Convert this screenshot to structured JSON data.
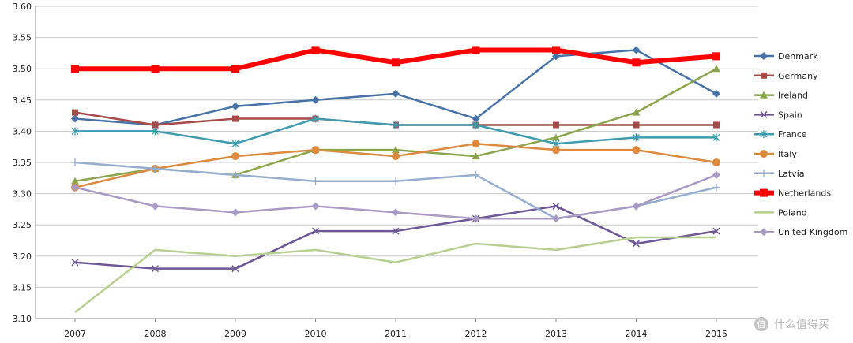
{
  "chart_data": {
    "type": "line",
    "categories": [
      "2007",
      "2008",
      "2009",
      "2010",
      "2011",
      "2012",
      "2013",
      "2014",
      "2015"
    ],
    "ylim": [
      3.1,
      3.6
    ],
    "yticks": [
      "3.10",
      "3.15",
      "3.20",
      "3.25",
      "3.30",
      "3.35",
      "3.40",
      "3.45",
      "3.50",
      "3.55",
      "3.60"
    ],
    "grid": "horizontal",
    "legend_position": "right",
    "series": [
      {
        "name": "Denmark",
        "color": "#4672a8",
        "marker": "diamond",
        "values": [
          3.42,
          3.41,
          3.44,
          3.45,
          3.46,
          3.42,
          3.52,
          3.53,
          3.46
        ]
      },
      {
        "name": "Germany",
        "color": "#a84a47",
        "marker": "square",
        "values": [
          3.43,
          3.41,
          3.42,
          3.42,
          3.41,
          3.41,
          3.41,
          3.41,
          3.41
        ]
      },
      {
        "name": "Ireland",
        "color": "#8aa54b",
        "marker": "triangle",
        "values": [
          3.32,
          3.34,
          3.33,
          3.37,
          3.37,
          3.36,
          3.39,
          3.43,
          3.5
        ]
      },
      {
        "name": "Spain",
        "color": "#6e5796",
        "marker": "x",
        "values": [
          3.19,
          3.18,
          3.18,
          3.24,
          3.24,
          3.26,
          3.28,
          3.22,
          3.24
        ]
      },
      {
        "name": "France",
        "color": "#3f9bae",
        "marker": "asterisk",
        "values": [
          3.4,
          3.4,
          3.38,
          3.42,
          3.41,
          3.41,
          3.38,
          3.39,
          3.39
        ]
      },
      {
        "name": "Italy",
        "color": "#dd8a3e",
        "marker": "circle",
        "values": [
          3.31,
          3.34,
          3.36,
          3.37,
          3.36,
          3.38,
          3.37,
          3.37,
          3.35
        ]
      },
      {
        "name": "Latvia",
        "color": "#95adcf",
        "marker": "plus",
        "values": [
          3.35,
          3.34,
          3.33,
          3.32,
          3.32,
          3.33,
          3.26,
          3.28,
          3.31
        ]
      },
      {
        "name": "Netherlands",
        "color": "#ff0000",
        "marker": "square",
        "thick": true,
        "values": [
          3.5,
          3.5,
          3.5,
          3.53,
          3.51,
          3.53,
          3.53,
          3.51,
          3.52
        ]
      },
      {
        "name": "Poland",
        "color": "#b7cf8f",
        "marker": "none",
        "values": [
          3.11,
          3.21,
          3.2,
          3.21,
          3.19,
          3.22,
          3.21,
          3.23,
          3.23
        ]
      },
      {
        "name": "United Kingdom",
        "color": "#a899c5",
        "marker": "diamond",
        "values": [
          3.31,
          3.28,
          3.27,
          3.28,
          3.27,
          3.26,
          3.26,
          3.28,
          3.33
        ]
      }
    ]
  },
  "watermark": {
    "icon": "zhi-icon",
    "text": "什么值得买"
  }
}
